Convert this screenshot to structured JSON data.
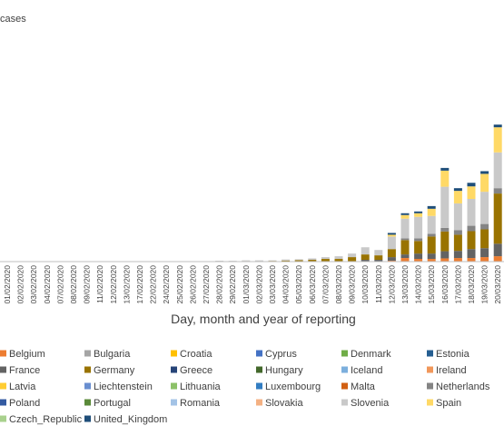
{
  "chart_data": {
    "type": "bar",
    "stacked": true,
    "y_label": "cases",
    "x_label": "Day, month and year of reporting",
    "categories": [
      "01/02/2020",
      "02/02/2020",
      "03/02/2020",
      "04/02/2020",
      "07/02/2020",
      "08/02/2020",
      "09/02/2020",
      "11/02/2020",
      "12/02/2020",
      "13/02/2020",
      "17/02/2020",
      "22/02/2020",
      "24/02/2020",
      "25/02/2020",
      "26/02/2020",
      "27/02/2020",
      "28/02/2020",
      "29/02/2020",
      "01/03/2020",
      "02/03/2020",
      "03/03/2020",
      "04/03/2020",
      "05/03/2020",
      "06/03/2020",
      "07/03/2020",
      "08/03/2020",
      "09/03/2020",
      "10/03/2020",
      "11/03/2020",
      "12/03/2020",
      "13/03/2020",
      "14/03/2020",
      "15/03/2020",
      "16/03/2020",
      "17/03/2020",
      "18/03/2020",
      "19/03/2020",
      "20/03/2020"
    ],
    "ylim": [
      0,
      14000
    ],
    "series": [
      {
        "name": "Belgium",
        "color": "#ed7d31",
        "values": [
          0,
          0,
          0,
          0,
          0,
          0,
          0,
          0,
          0,
          0,
          0,
          0,
          0,
          0,
          0,
          0,
          0,
          0,
          0,
          0,
          0,
          0,
          0,
          0,
          0,
          0,
          0,
          0,
          0,
          50,
          200,
          150,
          150,
          180,
          200,
          200,
          250,
          300
        ]
      },
      {
        "name": "Bulgaria",
        "color": "#a5a5a5",
        "values": [
          0,
          0,
          0,
          0,
          0,
          0,
          0,
          0,
          0,
          0,
          0,
          0,
          0,
          0,
          0,
          0,
          0,
          0,
          0,
          0,
          0,
          0,
          0,
          0,
          0,
          0,
          0,
          0,
          0,
          0,
          0,
          0,
          0,
          0,
          0,
          0,
          0,
          0
        ]
      },
      {
        "name": "Croatia",
        "color": "#ffc000",
        "values": [
          0,
          0,
          0,
          0,
          0,
          0,
          0,
          0,
          0,
          0,
          0,
          0,
          0,
          0,
          0,
          0,
          0,
          0,
          0,
          0,
          0,
          0,
          0,
          0,
          0,
          0,
          0,
          0,
          0,
          0,
          0,
          0,
          0,
          0,
          0,
          0,
          0,
          0
        ]
      },
      {
        "name": "Cyprus",
        "color": "#4472c4",
        "values": [
          0,
          0,
          0,
          0,
          0,
          0,
          0,
          0,
          0,
          0,
          0,
          0,
          0,
          0,
          0,
          0,
          0,
          0,
          0,
          0,
          0,
          0,
          0,
          0,
          0,
          0,
          0,
          0,
          0,
          0,
          0,
          0,
          0,
          0,
          0,
          0,
          0,
          0
        ]
      },
      {
        "name": "Denmark",
        "color": "#70ad47",
        "values": [
          0,
          0,
          0,
          0,
          0,
          0,
          0,
          0,
          0,
          0,
          0,
          0,
          0,
          0,
          0,
          0,
          0,
          0,
          0,
          0,
          0,
          0,
          0,
          0,
          0,
          0,
          0,
          0,
          0,
          0,
          0,
          0,
          0,
          0,
          0,
          0,
          0,
          0
        ]
      },
      {
        "name": "Estonia",
        "color": "#255e91",
        "values": [
          0,
          0,
          0,
          0,
          0,
          0,
          0,
          0,
          0,
          0,
          0,
          0,
          0,
          0,
          0,
          0,
          0,
          0,
          0,
          0,
          0,
          0,
          0,
          0,
          0,
          0,
          0,
          0,
          0,
          0,
          0,
          0,
          0,
          0,
          0,
          0,
          0,
          0
        ]
      },
      {
        "name": "France",
        "color": "#636363",
        "values": [
          0,
          0,
          0,
          0,
          0,
          0,
          0,
          0,
          0,
          0,
          0,
          0,
          0,
          0,
          0,
          0,
          0,
          0,
          0,
          0,
          0,
          0,
          0,
          0,
          0,
          0,
          0,
          100,
          100,
          200,
          200,
          300,
          300,
          400,
          400,
          500,
          500,
          700
        ]
      },
      {
        "name": "Germany",
        "color": "#997300",
        "values": [
          0,
          0,
          0,
          0,
          0,
          0,
          0,
          0,
          0,
          0,
          0,
          0,
          0,
          0,
          0,
          0,
          20,
          5,
          30,
          20,
          40,
          60,
          80,
          100,
          150,
          150,
          250,
          300,
          250,
          450,
          800,
          700,
          950,
          1100,
          900,
          1000,
          1050,
          2800
        ]
      },
      {
        "name": "Greece",
        "color": "#264478",
        "values": [
          0,
          0,
          0,
          0,
          0,
          0,
          0,
          0,
          0,
          0,
          0,
          0,
          0,
          0,
          0,
          0,
          0,
          0,
          0,
          0,
          0,
          0,
          0,
          0,
          0,
          0,
          0,
          0,
          0,
          0,
          0,
          0,
          0,
          0,
          0,
          0,
          0,
          0
        ]
      },
      {
        "name": "Hungary",
        "color": "#43682b",
        "values": [
          0,
          0,
          0,
          0,
          0,
          0,
          0,
          0,
          0,
          0,
          0,
          0,
          0,
          0,
          0,
          0,
          0,
          0,
          0,
          0,
          0,
          0,
          0,
          0,
          0,
          0,
          0,
          0,
          0,
          0,
          0,
          0,
          0,
          0,
          0,
          0,
          0,
          0
        ]
      },
      {
        "name": "Iceland",
        "color": "#7cafdd",
        "values": [
          0,
          0,
          0,
          0,
          0,
          0,
          0,
          0,
          0,
          0,
          0,
          0,
          0,
          0,
          0,
          0,
          0,
          0,
          0,
          0,
          0,
          0,
          0,
          0,
          0,
          0,
          0,
          0,
          0,
          0,
          0,
          0,
          0,
          0,
          0,
          0,
          0,
          0
        ]
      },
      {
        "name": "Ireland",
        "color": "#f1975a",
        "values": [
          0,
          0,
          0,
          0,
          0,
          0,
          0,
          0,
          0,
          0,
          0,
          0,
          0,
          0,
          0,
          0,
          0,
          0,
          0,
          0,
          0,
          0,
          0,
          0,
          0,
          0,
          0,
          0,
          0,
          0,
          0,
          0,
          0,
          0,
          0,
          0,
          0,
          0
        ]
      },
      {
        "name": "Latvia",
        "color": "#ffcd33",
        "values": [
          0,
          0,
          0,
          0,
          0,
          0,
          0,
          0,
          0,
          0,
          0,
          0,
          0,
          0,
          0,
          0,
          0,
          0,
          0,
          0,
          0,
          0,
          0,
          0,
          0,
          0,
          0,
          0,
          0,
          0,
          0,
          0,
          0,
          0,
          0,
          0,
          0,
          0
        ]
      },
      {
        "name": "Liechtenstein",
        "color": "#698ed0",
        "values": [
          0,
          0,
          0,
          0,
          0,
          0,
          0,
          0,
          0,
          0,
          0,
          0,
          0,
          0,
          0,
          0,
          0,
          0,
          0,
          0,
          0,
          0,
          0,
          0,
          0,
          0,
          0,
          0,
          0,
          0,
          0,
          0,
          0,
          0,
          0,
          0,
          0,
          0
        ]
      },
      {
        "name": "Lithuania",
        "color": "#8cc168",
        "values": [
          0,
          0,
          0,
          0,
          0,
          0,
          0,
          0,
          0,
          0,
          0,
          0,
          0,
          0,
          0,
          0,
          0,
          0,
          0,
          0,
          0,
          0,
          0,
          0,
          0,
          0,
          0,
          0,
          0,
          0,
          0,
          0,
          0,
          0,
          0,
          0,
          0,
          0
        ]
      },
      {
        "name": "Luxembourg",
        "color": "#327dc2",
        "values": [
          0,
          0,
          0,
          0,
          0,
          0,
          0,
          0,
          0,
          0,
          0,
          0,
          0,
          0,
          0,
          0,
          0,
          0,
          0,
          0,
          0,
          0,
          0,
          0,
          0,
          0,
          0,
          0,
          0,
          0,
          0,
          0,
          0,
          0,
          0,
          0,
          0,
          0
        ]
      },
      {
        "name": "Malta",
        "color": "#d26012",
        "values": [
          0,
          0,
          0,
          0,
          0,
          0,
          0,
          0,
          0,
          0,
          0,
          0,
          0,
          0,
          0,
          0,
          0,
          0,
          0,
          0,
          0,
          0,
          0,
          0,
          0,
          0,
          0,
          0,
          0,
          0,
          0,
          0,
          0,
          0,
          0,
          0,
          0,
          0
        ]
      },
      {
        "name": "Netherlands",
        "color": "#848484",
        "values": [
          0,
          0,
          0,
          0,
          0,
          0,
          0,
          0,
          0,
          0,
          0,
          0,
          0,
          0,
          0,
          0,
          0,
          0,
          0,
          0,
          0,
          0,
          0,
          0,
          0,
          0,
          0,
          0,
          0,
          0,
          100,
          150,
          150,
          200,
          250,
          300,
          300,
          300
        ]
      },
      {
        "name": "Poland",
        "color": "#335aa1",
        "values": [
          0,
          0,
          0,
          0,
          0,
          0,
          0,
          0,
          0,
          0,
          0,
          0,
          0,
          0,
          0,
          0,
          0,
          0,
          0,
          0,
          0,
          0,
          0,
          0,
          0,
          0,
          0,
          0,
          0,
          0,
          0,
          0,
          0,
          0,
          0,
          0,
          0,
          0
        ]
      },
      {
        "name": "Portugal",
        "color": "#5a8a39",
        "values": [
          0,
          0,
          0,
          0,
          0,
          0,
          0,
          0,
          0,
          0,
          0,
          0,
          0,
          0,
          0,
          0,
          0,
          0,
          0,
          0,
          0,
          0,
          0,
          0,
          0,
          0,
          0,
          0,
          0,
          0,
          0,
          0,
          0,
          0,
          0,
          0,
          0,
          0
        ]
      },
      {
        "name": "Romania",
        "color": "#a3c3e6",
        "values": [
          0,
          0,
          0,
          0,
          0,
          0,
          0,
          0,
          0,
          0,
          0,
          0,
          0,
          0,
          0,
          0,
          0,
          0,
          0,
          0,
          0,
          0,
          0,
          0,
          0,
          0,
          0,
          0,
          0,
          0,
          0,
          0,
          0,
          0,
          0,
          0,
          0,
          0
        ]
      },
      {
        "name": "Slovakia",
        "color": "#f4b183",
        "values": [
          0,
          0,
          0,
          0,
          0,
          0,
          0,
          0,
          0,
          0,
          0,
          0,
          0,
          0,
          0,
          0,
          0,
          0,
          0,
          0,
          0,
          0,
          0,
          0,
          0,
          0,
          0,
          0,
          0,
          0,
          0,
          0,
          0,
          0,
          0,
          0,
          0,
          0
        ]
      },
      {
        "name": "Slovenia",
        "color": "#c9c9c9",
        "values": [
          0,
          0,
          0,
          0,
          0,
          0,
          0,
          0,
          0,
          0,
          0,
          0,
          0,
          0,
          0,
          0,
          30,
          40,
          40,
          50,
          30,
          60,
          50,
          80,
          100,
          150,
          200,
          400,
          300,
          700,
          1100,
          1200,
          1000,
          2300,
          1500,
          1500,
          1800,
          2000
        ]
      },
      {
        "name": "Spain",
        "color": "#ffd966",
        "values": [
          0,
          0,
          0,
          0,
          0,
          0,
          0,
          0,
          0,
          0,
          0,
          0,
          0,
          0,
          0,
          0,
          0,
          0,
          0,
          0,
          0,
          0,
          0,
          0,
          0,
          0,
          0,
          0,
          0,
          100,
          200,
          200,
          400,
          900,
          700,
          700,
          1000,
          1400
        ]
      },
      {
        "name": "Czech_Republic",
        "color": "#a9d18e",
        "values": [
          0,
          0,
          0,
          0,
          0,
          0,
          0,
          0,
          0,
          0,
          0,
          0,
          0,
          0,
          0,
          0,
          0,
          0,
          0,
          0,
          0,
          0,
          0,
          0,
          0,
          0,
          0,
          0,
          0,
          0,
          0,
          0,
          0,
          0,
          0,
          0,
          0,
          0
        ]
      },
      {
        "name": "United_Kingdom",
        "color": "#1f4e79",
        "values": [
          0,
          0,
          0,
          0,
          0,
          0,
          0,
          0,
          0,
          0,
          0,
          0,
          0,
          0,
          0,
          0,
          0,
          0,
          0,
          0,
          0,
          0,
          0,
          0,
          0,
          0,
          0,
          0,
          0,
          100,
          100,
          100,
          150,
          150,
          150,
          200,
          150,
          150
        ]
      }
    ]
  }
}
